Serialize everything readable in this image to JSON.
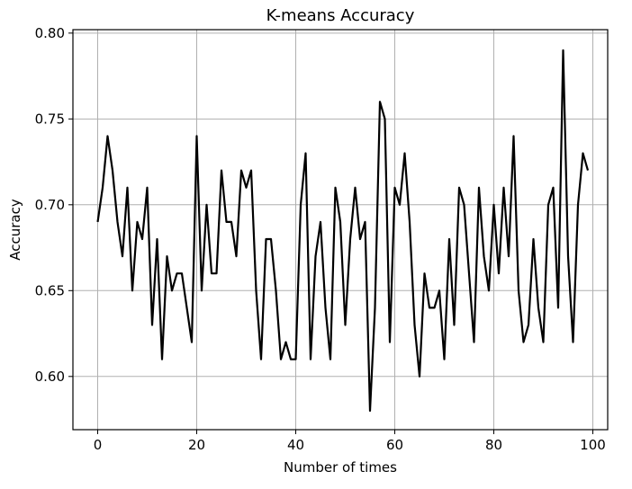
{
  "chart_data": {
    "type": "line",
    "title": "K-means Accuracy",
    "xlabel": "Number of times",
    "ylabel": "Accuracy",
    "xlim": [
      -5,
      103
    ],
    "ylim": [
      0.569,
      0.802
    ],
    "xticks": [
      0,
      20,
      40,
      60,
      80,
      100
    ],
    "xtick_labels": [
      "0",
      "20",
      "40",
      "60",
      "80",
      "100"
    ],
    "yticks": [
      0.6,
      0.65,
      0.7,
      0.75,
      0.8
    ],
    "ytick_labels": [
      "0.60",
      "0.65",
      "0.70",
      "0.75",
      "0.80"
    ],
    "grid": true,
    "line_color": "#000000",
    "series": [
      {
        "x": [
          0,
          1,
          2,
          3,
          4,
          5,
          6,
          7,
          8,
          9,
          10,
          11,
          12,
          13,
          14,
          15,
          16,
          17,
          18,
          19,
          20,
          21,
          22,
          23,
          24,
          25,
          26,
          27,
          28,
          29,
          30,
          31,
          32,
          33,
          34,
          35,
          36,
          37,
          38,
          39,
          40,
          41,
          42,
          43,
          44,
          45,
          46,
          47,
          48,
          49,
          50,
          51,
          52,
          53,
          54,
          55,
          56,
          57,
          58,
          59,
          60,
          61,
          62,
          63,
          64,
          65,
          66,
          67,
          68,
          69,
          70,
          71,
          72,
          73,
          74,
          75,
          76,
          77,
          78,
          79,
          80,
          81,
          82,
          83,
          84,
          85,
          86,
          87,
          88,
          89,
          90,
          91,
          92,
          93,
          94,
          95,
          96,
          97,
          98,
          99
        ],
        "values": [
          0.69,
          0.71,
          0.74,
          0.72,
          0.69,
          0.67,
          0.71,
          0.65,
          0.69,
          0.68,
          0.71,
          0.63,
          0.68,
          0.61,
          0.67,
          0.65,
          0.66,
          0.66,
          0.64,
          0.62,
          0.74,
          0.65,
          0.7,
          0.66,
          0.66,
          0.72,
          0.69,
          0.69,
          0.67,
          0.72,
          0.71,
          0.72,
          0.65,
          0.61,
          0.68,
          0.68,
          0.65,
          0.61,
          0.62,
          0.61,
          0.61,
          0.7,
          0.73,
          0.61,
          0.67,
          0.69,
          0.64,
          0.61,
          0.71,
          0.69,
          0.63,
          0.68,
          0.71,
          0.68,
          0.69,
          0.58,
          0.64,
          0.76,
          0.75,
          0.62,
          0.71,
          0.7,
          0.73,
          0.69,
          0.63,
          0.6,
          0.66,
          0.64,
          0.64,
          0.65,
          0.61,
          0.68,
          0.63,
          0.71,
          0.7,
          0.66,
          0.62,
          0.71,
          0.67,
          0.65,
          0.7,
          0.66,
          0.71,
          0.67,
          0.74,
          0.65,
          0.62,
          0.63,
          0.68,
          0.64,
          0.62,
          0.7,
          0.71,
          0.64,
          0.79,
          0.67,
          0.62,
          0.7,
          0.73,
          0.72
        ]
      }
    ]
  }
}
